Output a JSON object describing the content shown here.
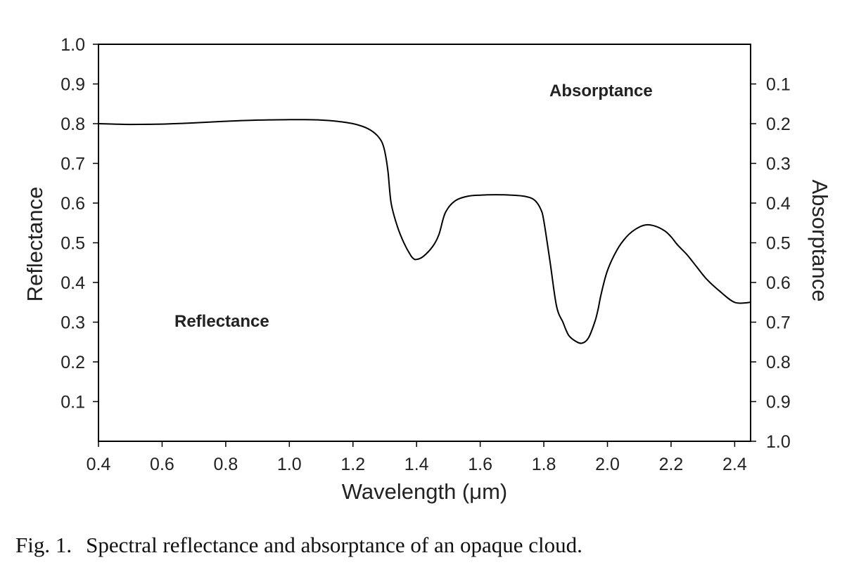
{
  "chart_data": {
    "type": "line",
    "xlabel": "Wavelength (μm)",
    "ylabel": "Reflectance",
    "y2label": "Absorptance",
    "xlim": [
      0.4,
      2.45
    ],
    "ylim": [
      0.0,
      1.0
    ],
    "y2lim": [
      1.0,
      0.0
    ],
    "x_ticks": [
      "0.4",
      "0.6",
      "0.8",
      "1.0",
      "1.2",
      "1.4",
      "1.6",
      "1.8",
      "2.0",
      "2.2",
      "2.4"
    ],
    "y_ticks": [
      "0.1",
      "0.2",
      "0.3",
      "0.4",
      "0.5",
      "0.6",
      "0.7",
      "0.8",
      "0.9",
      "1.0"
    ],
    "y2_ticks": [
      "0.1",
      "0.2",
      "0.3",
      "0.4",
      "0.5",
      "0.6",
      "0.7",
      "0.8",
      "0.9",
      "1.0"
    ],
    "grid": false,
    "annotations": [
      "Absorptance",
      "Reflectance"
    ],
    "line_color": "#000000",
    "series": [
      {
        "x": [
          0.4,
          0.45,
          0.5,
          0.6,
          0.7,
          0.8,
          0.9,
          1.0,
          1.05,
          1.1,
          1.15,
          1.2,
          1.24,
          1.27,
          1.29,
          1.3,
          1.31,
          1.32,
          1.34,
          1.36,
          1.38,
          1.39,
          1.4,
          1.42,
          1.45,
          1.47,
          1.49,
          1.52,
          1.56,
          1.6,
          1.65,
          1.7,
          1.74,
          1.77,
          1.79,
          1.8,
          1.82,
          1.84,
          1.86,
          1.87,
          1.88,
          1.9,
          1.92,
          1.94,
          1.96,
          1.97,
          1.98,
          2.0,
          2.03,
          2.06,
          2.09,
          2.12,
          2.15,
          2.18,
          2.2,
          2.22,
          2.25,
          2.28,
          2.31,
          2.35,
          2.4,
          2.45
        ],
        "y": [
          0.8,
          0.799,
          0.798,
          0.799,
          0.802,
          0.806,
          0.809,
          0.81,
          0.81,
          0.809,
          0.806,
          0.8,
          0.79,
          0.775,
          0.755,
          0.73,
          0.68,
          0.6,
          0.54,
          0.5,
          0.47,
          0.46,
          0.458,
          0.465,
          0.49,
          0.52,
          0.575,
          0.605,
          0.617,
          0.62,
          0.621,
          0.62,
          0.617,
          0.608,
          0.585,
          0.555,
          0.45,
          0.34,
          0.3,
          0.28,
          0.265,
          0.252,
          0.247,
          0.26,
          0.3,
          0.33,
          0.37,
          0.43,
          0.482,
          0.515,
          0.535,
          0.545,
          0.542,
          0.53,
          0.515,
          0.495,
          0.47,
          0.44,
          0.41,
          0.38,
          0.35,
          0.35
        ]
      }
    ]
  },
  "caption": {
    "label": "Fig. 1.",
    "text": "Spectral reflectance and absorptance of an opaque cloud."
  }
}
